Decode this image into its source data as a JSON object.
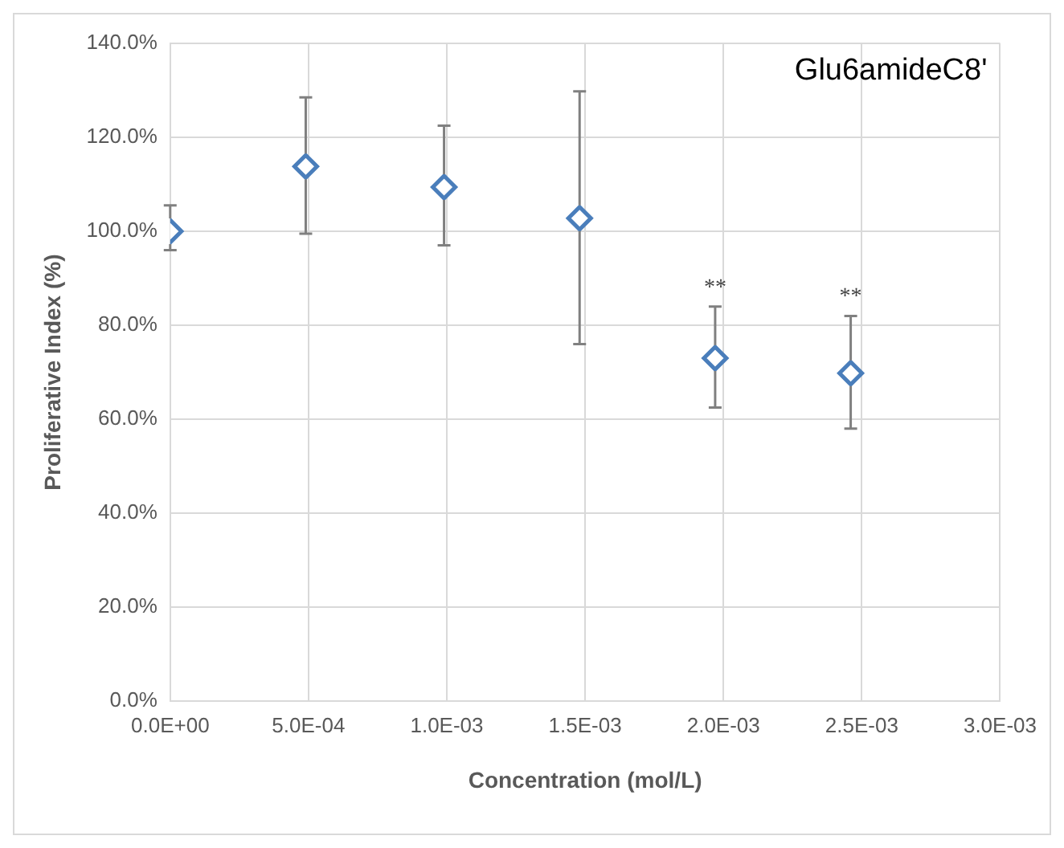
{
  "chart_data": {
    "type": "scatter",
    "title": "Glu6amideC8'",
    "xlabel": "Concentration (mol/L)",
    "ylabel": "Proliferative Index (%)",
    "x": [
      0,
      0.00049,
      0.00099,
      0.00148,
      0.00197,
      0.00246
    ],
    "values": [
      100,
      113.8,
      109.4,
      102.8,
      73,
      69.8
    ],
    "errors": [
      [
        96,
        105.5
      ],
      [
        99.5,
        128.5
      ],
      [
        97,
        122.5
      ],
      [
        76,
        129.8
      ],
      [
        62.5,
        84
      ],
      [
        58,
        82
      ]
    ],
    "color": "#4a7ebb",
    "marker": "diamond",
    "grid": true,
    "xlim": [
      0,
      0.003
    ],
    "xticks": [
      {
        "value": 0,
        "label": "0.0E+00"
      },
      {
        "value": 0.0005,
        "label": "5.0E-04"
      },
      {
        "value": 0.001,
        "label": "1.0E-03"
      },
      {
        "value": 0.0015,
        "label": "1.5E-03"
      },
      {
        "value": 0.002,
        "label": "2.0E-03"
      },
      {
        "value": 0.0025,
        "label": "2.5E-03"
      },
      {
        "value": 0.003,
        "label": "3.0E-03"
      }
    ],
    "ylim": [
      0,
      140
    ],
    "yticks": [
      {
        "value": 0,
        "label": "0.0%"
      },
      {
        "value": 20,
        "label": "20.0%"
      },
      {
        "value": 40,
        "label": "40.0%"
      },
      {
        "value": 60,
        "label": "60.0%"
      },
      {
        "value": 80,
        "label": "80.0%"
      },
      {
        "value": 100,
        "label": "100.0%"
      },
      {
        "value": 120,
        "label": "120.0%"
      },
      {
        "value": 140,
        "label": "140.0%"
      }
    ],
    "annotations": [
      {
        "text": "**",
        "x": 0.00197,
        "y": 84
      },
      {
        "text": "**",
        "x": 0.00246,
        "y": 82
      }
    ]
  }
}
